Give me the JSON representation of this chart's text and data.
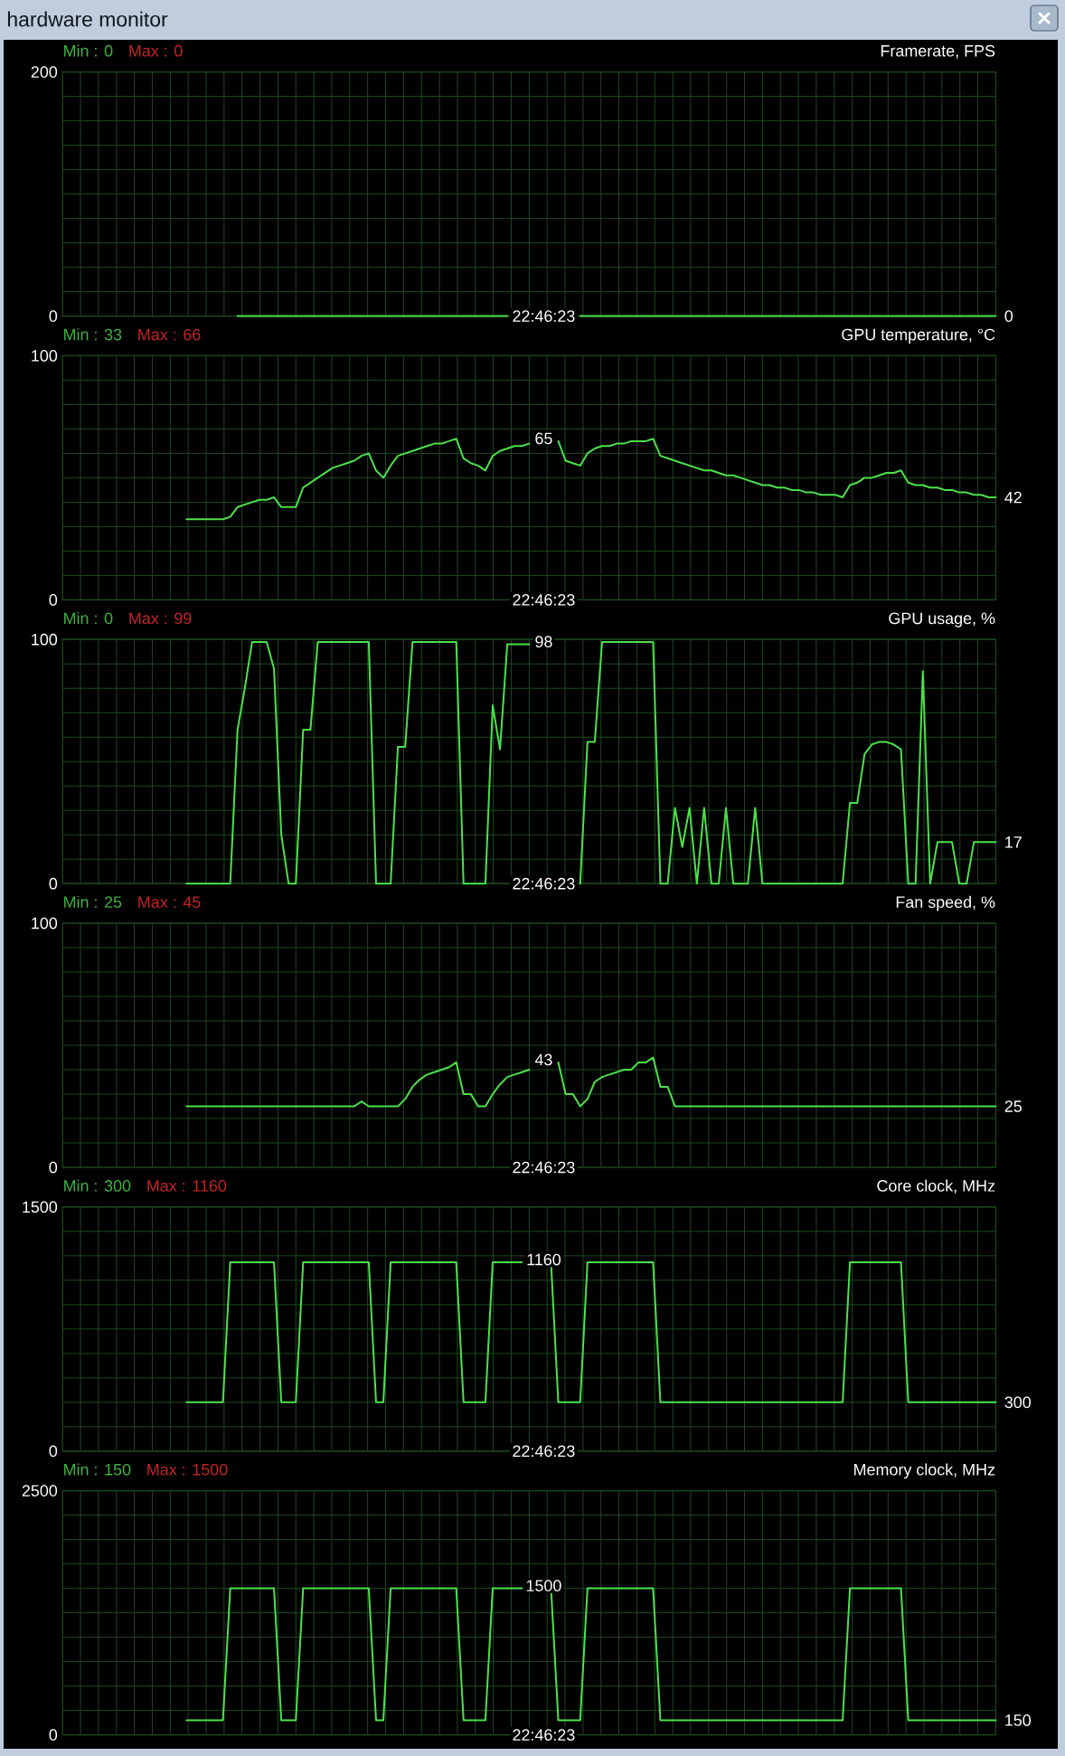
{
  "chart_data": [
    {
      "type": "other",
      "title": "hardware monitor"
    },
    {
      "type": "line",
      "title": "Framerate, FPS",
      "categories": [
        null,
        null,
        null,
        null,
        null,
        null,
        null,
        null,
        null,
        null,
        null,
        null,
        null,
        null,
        null,
        null,
        null,
        null,
        null,
        null,
        null,
        null,
        null,
        null,
        null,
        null,
        null,
        null,
        null,
        null,
        null,
        null,
        null,
        null,
        null,
        null,
        null,
        null,
        null,
        null,
        null,
        null,
        null,
        null,
        null,
        null,
        null,
        null,
        null,
        null,
        null,
        null,
        null,
        null,
        null,
        null,
        null,
        null,
        null,
        null,
        null,
        null,
        null,
        null,
        null,
        null,
        "22:46:23",
        null,
        null,
        null,
        null,
        null,
        null,
        null,
        null,
        null,
        null,
        null,
        null,
        null,
        null,
        null,
        null,
        null,
        null,
        null,
        null,
        null,
        null,
        null,
        null,
        null,
        null,
        null,
        null,
        null,
        null,
        null,
        null,
        null,
        null,
        null,
        null,
        null,
        null,
        null,
        null,
        null,
        null,
        null,
        null,
        null,
        null,
        null,
        null,
        null,
        null,
        null,
        null,
        null,
        null,
        null,
        null,
        null,
        null,
        null,
        null,
        null,
        null
      ],
      "values": [
        null,
        null,
        null,
        null,
        null,
        null,
        null,
        null,
        null,
        null,
        null,
        null,
        null,
        null,
        null,
        null,
        null,
        null,
        null,
        null,
        null,
        null,
        null,
        null,
        0,
        0,
        0,
        0,
        0,
        0,
        0,
        0,
        0,
        0,
        0,
        0,
        0,
        0,
        0,
        0,
        0,
        0,
        0,
        0,
        0,
        0,
        0,
        0,
        0,
        0,
        0,
        0,
        0,
        0,
        0,
        0,
        0,
        0,
        0,
        0,
        0,
        0,
        null,
        null,
        null,
        null,
        null,
        null,
        null,
        null,
        null,
        0,
        0,
        0,
        0,
        0,
        0,
        0,
        0,
        0,
        0,
        0,
        0,
        0,
        0,
        0,
        0,
        0,
        0,
        0,
        0,
        0,
        0,
        0,
        0,
        0,
        0,
        0,
        0,
        0,
        0,
        0,
        0,
        0,
        0,
        0,
        0,
        0,
        0,
        0,
        0,
        0,
        0,
        0,
        0,
        0,
        0,
        0,
        0,
        0,
        0,
        0,
        0,
        0,
        0,
        0,
        0,
        0,
        0
      ],
      "color": "#4ce14c",
      "ylim": [
        0,
        200
      ],
      "yticks": [
        0,
        {
          "value": 20,
          "label": null
        },
        {
          "value": 40,
          "label": null
        },
        {
          "value": 60,
          "label": null
        },
        {
          "value": 80,
          "label": null
        },
        {
          "value": 100,
          "label": null
        },
        {
          "value": 120,
          "label": null
        },
        {
          "value": 140,
          "label": null
        },
        {
          "value": 160,
          "label": null
        },
        {
          "value": 180,
          "label": null
        },
        200
      ],
      "grid": true,
      "annotations": [
        "Min : 0",
        "Max : 0",
        "0"
      ]
    },
    {
      "type": "line",
      "title": "GPU temperature, °C",
      "categories": [
        null,
        null,
        null,
        null,
        null,
        null,
        null,
        null,
        null,
        null,
        null,
        null,
        null,
        null,
        null,
        null,
        null,
        null,
        null,
        null,
        null,
        null,
        null,
        null,
        null,
        null,
        null,
        null,
        null,
        null,
        null,
        null,
        null,
        null,
        null,
        null,
        null,
        null,
        null,
        null,
        null,
        null,
        null,
        null,
        null,
        null,
        null,
        null,
        null,
        null,
        null,
        null,
        null,
        null,
        null,
        null,
        null,
        null,
        null,
        null,
        null,
        null,
        null,
        null,
        null,
        null,
        "22:46:23",
        null,
        null,
        null,
        null,
        null,
        null,
        null,
        null,
        null,
        null,
        null,
        null,
        null,
        null,
        null,
        null,
        null,
        null,
        null,
        null,
        null,
        null,
        null,
        null,
        null,
        null,
        null,
        null,
        null,
        null,
        null,
        null,
        null,
        null,
        null,
        null,
        null,
        null,
        null,
        null,
        null,
        null,
        null,
        null,
        null,
        null,
        null,
        null,
        null,
        null,
        null,
        null,
        null,
        null,
        null,
        null,
        null,
        null,
        null,
        null,
        null,
        null
      ],
      "values": [
        null,
        null,
        null,
        null,
        null,
        null,
        null,
        null,
        null,
        null,
        null,
        null,
        null,
        null,
        null,
        null,
        null,
        33,
        33,
        33,
        33,
        33,
        33,
        34,
        38,
        39,
        40,
        41,
        41,
        42,
        38,
        38,
        38,
        46,
        48,
        50,
        52,
        54,
        55,
        56,
        57,
        59,
        60,
        53,
        50,
        55,
        59,
        60,
        61,
        62,
        63,
        64,
        64,
        65,
        66,
        58,
        56,
        55,
        53,
        59,
        61,
        62,
        63,
        63,
        64,
        null,
        null,
        null,
        65,
        57,
        56,
        55,
        60,
        62,
        63,
        63,
        64,
        64,
        65,
        65,
        65,
        66,
        59,
        58,
        57,
        56,
        55,
        54,
        53,
        53,
        52,
        51,
        51,
        50,
        49,
        48,
        47,
        47,
        46,
        46,
        45,
        45,
        44,
        44,
        43,
        43,
        43,
        42,
        47,
        48,
        50,
        50,
        51,
        52,
        52,
        53,
        48,
        47,
        47,
        46,
        46,
        45,
        45,
        44,
        44,
        43,
        43,
        42,
        42
      ],
      "color": "#4ce14c",
      "ylim": [
        0,
        100
      ],
      "yticks": [
        0,
        {
          "value": 10,
          "label": null
        },
        {
          "value": 20,
          "label": null
        },
        {
          "value": 30,
          "label": null
        },
        {
          "value": 40,
          "label": null
        },
        {
          "value": 50,
          "label": null
        },
        {
          "value": 60,
          "label": null
        },
        {
          "value": 70,
          "label": null
        },
        {
          "value": 80,
          "label": null
        },
        {
          "value": 90,
          "label": null
        },
        100
      ],
      "grid": true,
      "annotations": [
        "Min : 33",
        "Max : 66",
        {
          "text": "65",
          "x": "22:46:23",
          "y": 65
        },
        "42"
      ]
    },
    {
      "type": "line",
      "title": "GPU usage, %",
      "categories": [
        null,
        null,
        null,
        null,
        null,
        null,
        null,
        null,
        null,
        null,
        null,
        null,
        null,
        null,
        null,
        null,
        null,
        null,
        null,
        null,
        null,
        null,
        null,
        null,
        null,
        null,
        null,
        null,
        null,
        null,
        null,
        null,
        null,
        null,
        null,
        null,
        null,
        null,
        null,
        null,
        null,
        null,
        null,
        null,
        null,
        null,
        null,
        null,
        null,
        null,
        null,
        null,
        null,
        null,
        null,
        null,
        null,
        null,
        null,
        null,
        null,
        null,
        null,
        null,
        null,
        null,
        "22:46:23",
        null,
        null,
        null,
        null,
        null,
        null,
        null,
        null,
        null,
        null,
        null,
        null,
        null,
        null,
        null,
        null,
        null,
        null,
        null,
        null,
        null,
        null,
        null,
        null,
        null,
        null,
        null,
        null,
        null,
        null,
        null,
        null,
        null,
        null,
        null,
        null,
        null,
        null,
        null,
        null,
        null,
        null,
        null,
        null,
        null,
        null,
        null,
        null,
        null,
        null,
        null,
        null,
        null,
        null,
        null,
        null,
        null,
        null,
        null,
        null,
        null,
        null
      ],
      "values": [
        null,
        null,
        null,
        null,
        null,
        null,
        null,
        null,
        null,
        null,
        null,
        null,
        null,
        null,
        null,
        null,
        null,
        0,
        0,
        0,
        0,
        0,
        0,
        0,
        63,
        80,
        99,
        99,
        99,
        88,
        20,
        0,
        0,
        63,
        63,
        99,
        99,
        99,
        99,
        99,
        99,
        99,
        99,
        0,
        0,
        0,
        56,
        56,
        99,
        99,
        99,
        99,
        99,
        99,
        99,
        0,
        0,
        0,
        0,
        73,
        55,
        98,
        98,
        98,
        98,
        null,
        null,
        null,
        null,
        null,
        null,
        0,
        58,
        58,
        99,
        99,
        99,
        99,
        99,
        99,
        99,
        99,
        0,
        0,
        31,
        15,
        31,
        0,
        31,
        0,
        0,
        31,
        0,
        0,
        0,
        31,
        0,
        0,
        0,
        0,
        0,
        0,
        0,
        0,
        0,
        0,
        0,
        0,
        33,
        33,
        53,
        57,
        58,
        58,
        57,
        55,
        0,
        0,
        87,
        0,
        17,
        17,
        17,
        0,
        0,
        17,
        17,
        17,
        17
      ],
      "color": "#4ce14c",
      "ylim": [
        0,
        100
      ],
      "yticks": [
        0,
        {
          "value": 10,
          "label": null
        },
        {
          "value": 20,
          "label": null
        },
        {
          "value": 30,
          "label": null
        },
        {
          "value": 40,
          "label": null
        },
        {
          "value": 50,
          "label": null
        },
        {
          "value": 60,
          "label": null
        },
        {
          "value": 70,
          "label": null
        },
        {
          "value": 80,
          "label": null
        },
        {
          "value": 90,
          "label": null
        },
        100
      ],
      "grid": true,
      "annotations": [
        "Min : 0",
        "Max : 99",
        {
          "text": "98",
          "x": "22:46:23",
          "y": 98
        },
        "17"
      ]
    },
    {
      "type": "line",
      "title": "Fan speed, %",
      "categories": [
        null,
        null,
        null,
        null,
        null,
        null,
        null,
        null,
        null,
        null,
        null,
        null,
        null,
        null,
        null,
        null,
        null,
        null,
        null,
        null,
        null,
        null,
        null,
        null,
        null,
        null,
        null,
        null,
        null,
        null,
        null,
        null,
        null,
        null,
        null,
        null,
        null,
        null,
        null,
        null,
        null,
        null,
        null,
        null,
        null,
        null,
        null,
        null,
        null,
        null,
        null,
        null,
        null,
        null,
        null,
        null,
        null,
        null,
        null,
        null,
        null,
        null,
        null,
        null,
        null,
        null,
        "22:46:23",
        null,
        null,
        null,
        null,
        null,
        null,
        null,
        null,
        null,
        null,
        null,
        null,
        null,
        null,
        null,
        null,
        null,
        null,
        null,
        null,
        null,
        null,
        null,
        null,
        null,
        null,
        null,
        null,
        null,
        null,
        null,
        null,
        null,
        null,
        null,
        null,
        null,
        null,
        null,
        null,
        null,
        null,
        null,
        null,
        null,
        null,
        null,
        null,
        null,
        null,
        null,
        null,
        null,
        null,
        null,
        null,
        null,
        null,
        null,
        null,
        null,
        null
      ],
      "values": [
        null,
        null,
        null,
        null,
        null,
        null,
        null,
        null,
        null,
        null,
        null,
        null,
        null,
        null,
        null,
        null,
        null,
        25,
        25,
        25,
        25,
        25,
        25,
        25,
        25,
        25,
        25,
        25,
        25,
        25,
        25,
        25,
        25,
        25,
        25,
        25,
        25,
        25,
        25,
        25,
        25,
        27,
        25,
        25,
        25,
        25,
        25,
        28,
        33,
        36,
        38,
        39,
        40,
        41,
        43,
        30,
        30,
        25,
        25,
        30,
        34,
        37,
        38,
        39,
        40,
        null,
        null,
        null,
        43,
        30,
        30,
        25,
        28,
        35,
        37,
        38,
        39,
        40,
        40,
        43,
        43,
        45,
        33,
        33,
        25,
        25,
        25,
        25,
        25,
        25,
        25,
        25,
        25,
        25,
        25,
        25,
        25,
        25,
        25,
        25,
        25,
        25,
        25,
        25,
        25,
        25,
        25,
        25,
        25,
        25,
        25,
        25,
        25,
        25,
        25,
        25,
        25,
        25,
        25,
        25,
        25,
        25,
        25,
        25,
        25,
        25,
        25,
        25,
        25
      ],
      "color": "#4ce14c",
      "ylim": [
        0,
        100
      ],
      "yticks": [
        0,
        {
          "value": 10,
          "label": null
        },
        {
          "value": 20,
          "label": null
        },
        {
          "value": 30,
          "label": null
        },
        {
          "value": 40,
          "label": null
        },
        {
          "value": 50,
          "label": null
        },
        {
          "value": 60,
          "label": null
        },
        {
          "value": 70,
          "label": null
        },
        {
          "value": 80,
          "label": null
        },
        {
          "value": 90,
          "label": null
        },
        100
      ],
      "grid": true,
      "annotations": [
        "Min : 25",
        "Max : 45",
        {
          "text": "43",
          "x": "22:46:23",
          "y": 43
        },
        "25"
      ]
    },
    {
      "type": "line",
      "title": "Core clock, MHz",
      "categories": [
        null,
        null,
        null,
        null,
        null,
        null,
        null,
        null,
        null,
        null,
        null,
        null,
        null,
        null,
        null,
        null,
        null,
        null,
        null,
        null,
        null,
        null,
        null,
        null,
        null,
        null,
        null,
        null,
        null,
        null,
        null,
        null,
        null,
        null,
        null,
        null,
        null,
        null,
        null,
        null,
        null,
        null,
        null,
        null,
        null,
        null,
        null,
        null,
        null,
        null,
        null,
        null,
        null,
        null,
        null,
        null,
        null,
        null,
        null,
        null,
        null,
        null,
        null,
        null,
        null,
        null,
        "22:46:23",
        null,
        null,
        null,
        null,
        null,
        null,
        null,
        null,
        null,
        null,
        null,
        null,
        null,
        null,
        null,
        null,
        null,
        null,
        null,
        null,
        null,
        null,
        null,
        null,
        null,
        null,
        null,
        null,
        null,
        null,
        null,
        null,
        null,
        null,
        null,
        null,
        null,
        null,
        null,
        null,
        null,
        null,
        null,
        null,
        null,
        null,
        null,
        null,
        null,
        null,
        null,
        null,
        null,
        null,
        null,
        null,
        null,
        null,
        null,
        null,
        null,
        null
      ],
      "values": [
        null,
        null,
        null,
        null,
        null,
        null,
        null,
        null,
        null,
        null,
        null,
        null,
        null,
        null,
        null,
        null,
        null,
        300,
        300,
        300,
        300,
        300,
        300,
        1160,
        1160,
        1160,
        1160,
        1160,
        1160,
        1160,
        300,
        300,
        300,
        1160,
        1160,
        1160,
        1160,
        1160,
        1160,
        1160,
        1160,
        1160,
        1160,
        300,
        300,
        1160,
        1160,
        1160,
        1160,
        1160,
        1160,
        1160,
        1160,
        1160,
        1160,
        300,
        300,
        300,
        300,
        1160,
        1160,
        1160,
        1160,
        1160,
        null,
        null,
        null,
        1160,
        300,
        300,
        300,
        300,
        1160,
        1160,
        1160,
        1160,
        1160,
        1160,
        1160,
        1160,
        1160,
        1160,
        300,
        300,
        300,
        300,
        300,
        300,
        300,
        300,
        300,
        300,
        300,
        300,
        300,
        300,
        300,
        300,
        300,
        300,
        300,
        300,
        300,
        300,
        300,
        300,
        300,
        300,
        1160,
        1160,
        1160,
        1160,
        1160,
        1160,
        1160,
        1160,
        300,
        300,
        300,
        300,
        300,
        300,
        300,
        300,
        300,
        300,
        300,
        300,
        300
      ],
      "color": "#4ce14c",
      "ylim": [
        0,
        1500
      ],
      "yticks": [
        0,
        {
          "value": 150,
          "label": null
        },
        {
          "value": 300,
          "label": null
        },
        {
          "value": 450,
          "label": null
        },
        {
          "value": 600,
          "label": null
        },
        {
          "value": 750,
          "label": null
        },
        {
          "value": 900,
          "label": null
        },
        {
          "value": 1050,
          "label": null
        },
        {
          "value": 1200,
          "label": null
        },
        {
          "value": 1350,
          "label": null
        },
        1500
      ],
      "grid": true,
      "annotations": [
        "Min : 300",
        "Max : 1160",
        {
          "text": "1160",
          "x": "22:46:23",
          "y": 1160
        },
        "300"
      ]
    },
    {
      "type": "line",
      "title": "Memory clock, MHz",
      "categories": [
        null,
        null,
        null,
        null,
        null,
        null,
        null,
        null,
        null,
        null,
        null,
        null,
        null,
        null,
        null,
        null,
        null,
        null,
        null,
        null,
        null,
        null,
        null,
        null,
        null,
        null,
        null,
        null,
        null,
        null,
        null,
        null,
        null,
        null,
        null,
        null,
        null,
        null,
        null,
        null,
        null,
        null,
        null,
        null,
        null,
        null,
        null,
        null,
        null,
        null,
        null,
        null,
        null,
        null,
        null,
        null,
        null,
        null,
        null,
        null,
        null,
        null,
        null,
        null,
        null,
        null,
        "22:46:23",
        null,
        null,
        null,
        null,
        null,
        null,
        null,
        null,
        null,
        null,
        null,
        null,
        null,
        null,
        null,
        null,
        null,
        null,
        null,
        null,
        null,
        null,
        null,
        null,
        null,
        null,
        null,
        null,
        null,
        null,
        null,
        null,
        null,
        null,
        null,
        null,
        null,
        null,
        null,
        null,
        null,
        null,
        null,
        null,
        null,
        null,
        null,
        null,
        null,
        null,
        null,
        null,
        null,
        null,
        null,
        null,
        null,
        null,
        null,
        null,
        null,
        null
      ],
      "values": [
        null,
        null,
        null,
        null,
        null,
        null,
        null,
        null,
        null,
        null,
        null,
        null,
        null,
        null,
        null,
        null,
        null,
        150,
        150,
        150,
        150,
        150,
        150,
        1500,
        1500,
        1500,
        1500,
        1500,
        1500,
        1500,
        150,
        150,
        150,
        1500,
        1500,
        1500,
        1500,
        1500,
        1500,
        1500,
        1500,
        1500,
        1500,
        150,
        150,
        1500,
        1500,
        1500,
        1500,
        1500,
        1500,
        1500,
        1500,
        1500,
        1500,
        150,
        150,
        150,
        150,
        1500,
        1500,
        1500,
        1500,
        1500,
        null,
        null,
        null,
        1500,
        150,
        150,
        150,
        150,
        1500,
        1500,
        1500,
        1500,
        1500,
        1500,
        1500,
        1500,
        1500,
        1500,
        150,
        150,
        150,
        150,
        150,
        150,
        150,
        150,
        150,
        150,
        150,
        150,
        150,
        150,
        150,
        150,
        150,
        150,
        150,
        150,
        150,
        150,
        150,
        150,
        150,
        150,
        1500,
        1500,
        1500,
        1500,
        1500,
        1500,
        1500,
        1500,
        150,
        150,
        150,
        150,
        150,
        150,
        150,
        150,
        150,
        150,
        150,
        150,
        150
      ],
      "color": "#4ce14c",
      "ylim": [
        0,
        2500
      ],
      "yticks": [
        0,
        {
          "value": 250,
          "label": null
        },
        {
          "value": 500,
          "label": null
        },
        {
          "value": 750,
          "label": null
        },
        {
          "value": 1000,
          "label": null
        },
        {
          "value": 1250,
          "label": null
        },
        {
          "value": 1500,
          "label": null
        },
        {
          "value": 1750,
          "label": null
        },
        {
          "value": 2000,
          "label": null
        },
        {
          "value": 2250,
          "label": null
        },
        2500
      ],
      "grid": true,
      "annotations": [
        "Min : 150",
        "Max : 1500",
        {
          "text": "1500",
          "x": "22:46:23",
          "y": 1500
        },
        "150"
      ]
    }
  ]
}
